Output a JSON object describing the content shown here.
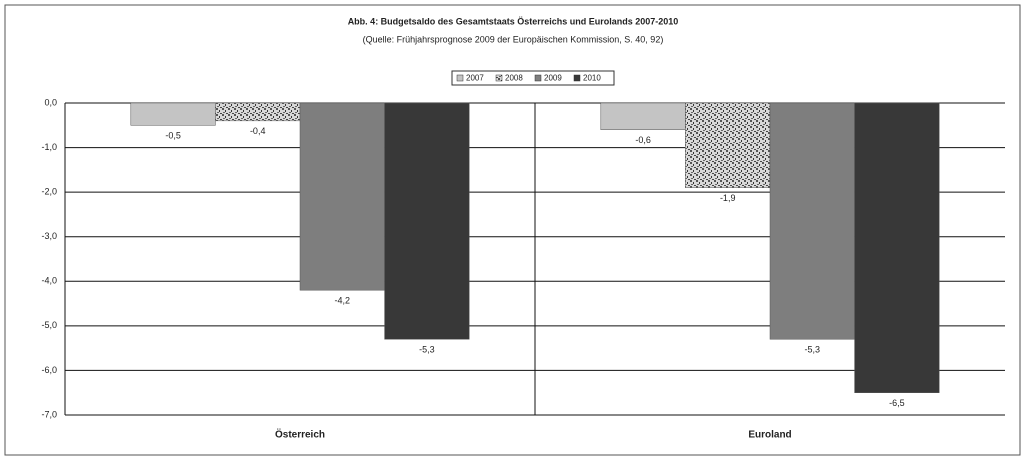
{
  "chart_data": {
    "type": "bar",
    "title": "Abb. 4: Budgetsaldo des Gesamtstaats Österreichs und Eurolands 2007-2010",
    "subtitle": "(Quelle: Frühjahrsprognose 2009 der Europäischen Kommission, S. 40, 92)",
    "categories": [
      "Österreich",
      "Euroland"
    ],
    "series": [
      {
        "name": "2007",
        "color": "#c4c4c4",
        "values": [
          -0.5,
          -0.6
        ],
        "value_labels": [
          "-0,5",
          "-0,6"
        ]
      },
      {
        "name": "2008",
        "color": "#b0b0b0",
        "pattern": "speckled",
        "values": [
          -0.4,
          -1.9
        ],
        "value_labels": [
          "-0,4",
          "-1,9"
        ]
      },
      {
        "name": "2009",
        "color": "#7e7e7e",
        "values": [
          -4.2,
          -5.3
        ],
        "value_labels": [
          "-4,2",
          "-5,3"
        ]
      },
      {
        "name": "2010",
        "color": "#383838",
        "values": [
          -5.3,
          -6.5
        ],
        "value_labels": [
          "-5,3",
          "-6,5"
        ]
      }
    ],
    "ylim": [
      -7,
      0
    ],
    "yticks": [
      {
        "value": 0,
        "label": "0,0"
      },
      {
        "value": -1,
        "label": "-1,0"
      },
      {
        "value": -2,
        "label": "-2,0"
      },
      {
        "value": -3,
        "label": "-3,0"
      },
      {
        "value": -4,
        "label": "-4,0"
      },
      {
        "value": -5,
        "label": "-5,0"
      },
      {
        "value": -6,
        "label": "-6,0"
      },
      {
        "value": -7,
        "label": "-7,0"
      }
    ],
    "grid": true,
    "legend": "top"
  }
}
